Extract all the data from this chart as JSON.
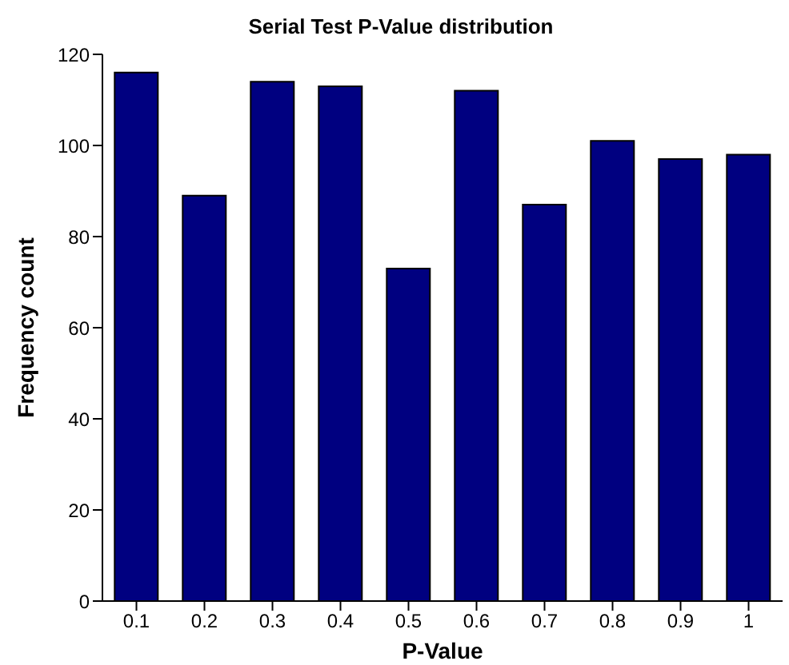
{
  "chart_data": {
    "type": "bar",
    "title": "Serial Test P-Value distribution",
    "xlabel": "P-Value",
    "ylabel": "Frequency count",
    "categories": [
      "0.1",
      "0.2",
      "0.3",
      "0.4",
      "0.5",
      "0.6",
      "0.7",
      "0.8",
      "0.9",
      "1"
    ],
    "values": [
      116,
      89,
      114,
      113,
      73,
      112,
      87,
      101,
      97,
      98
    ],
    "color": "#000080",
    "ylim": [
      0,
      120
    ],
    "yticks": [
      0,
      20,
      40,
      60,
      80,
      100,
      120
    ],
    "grid": false,
    "legend": false
  }
}
